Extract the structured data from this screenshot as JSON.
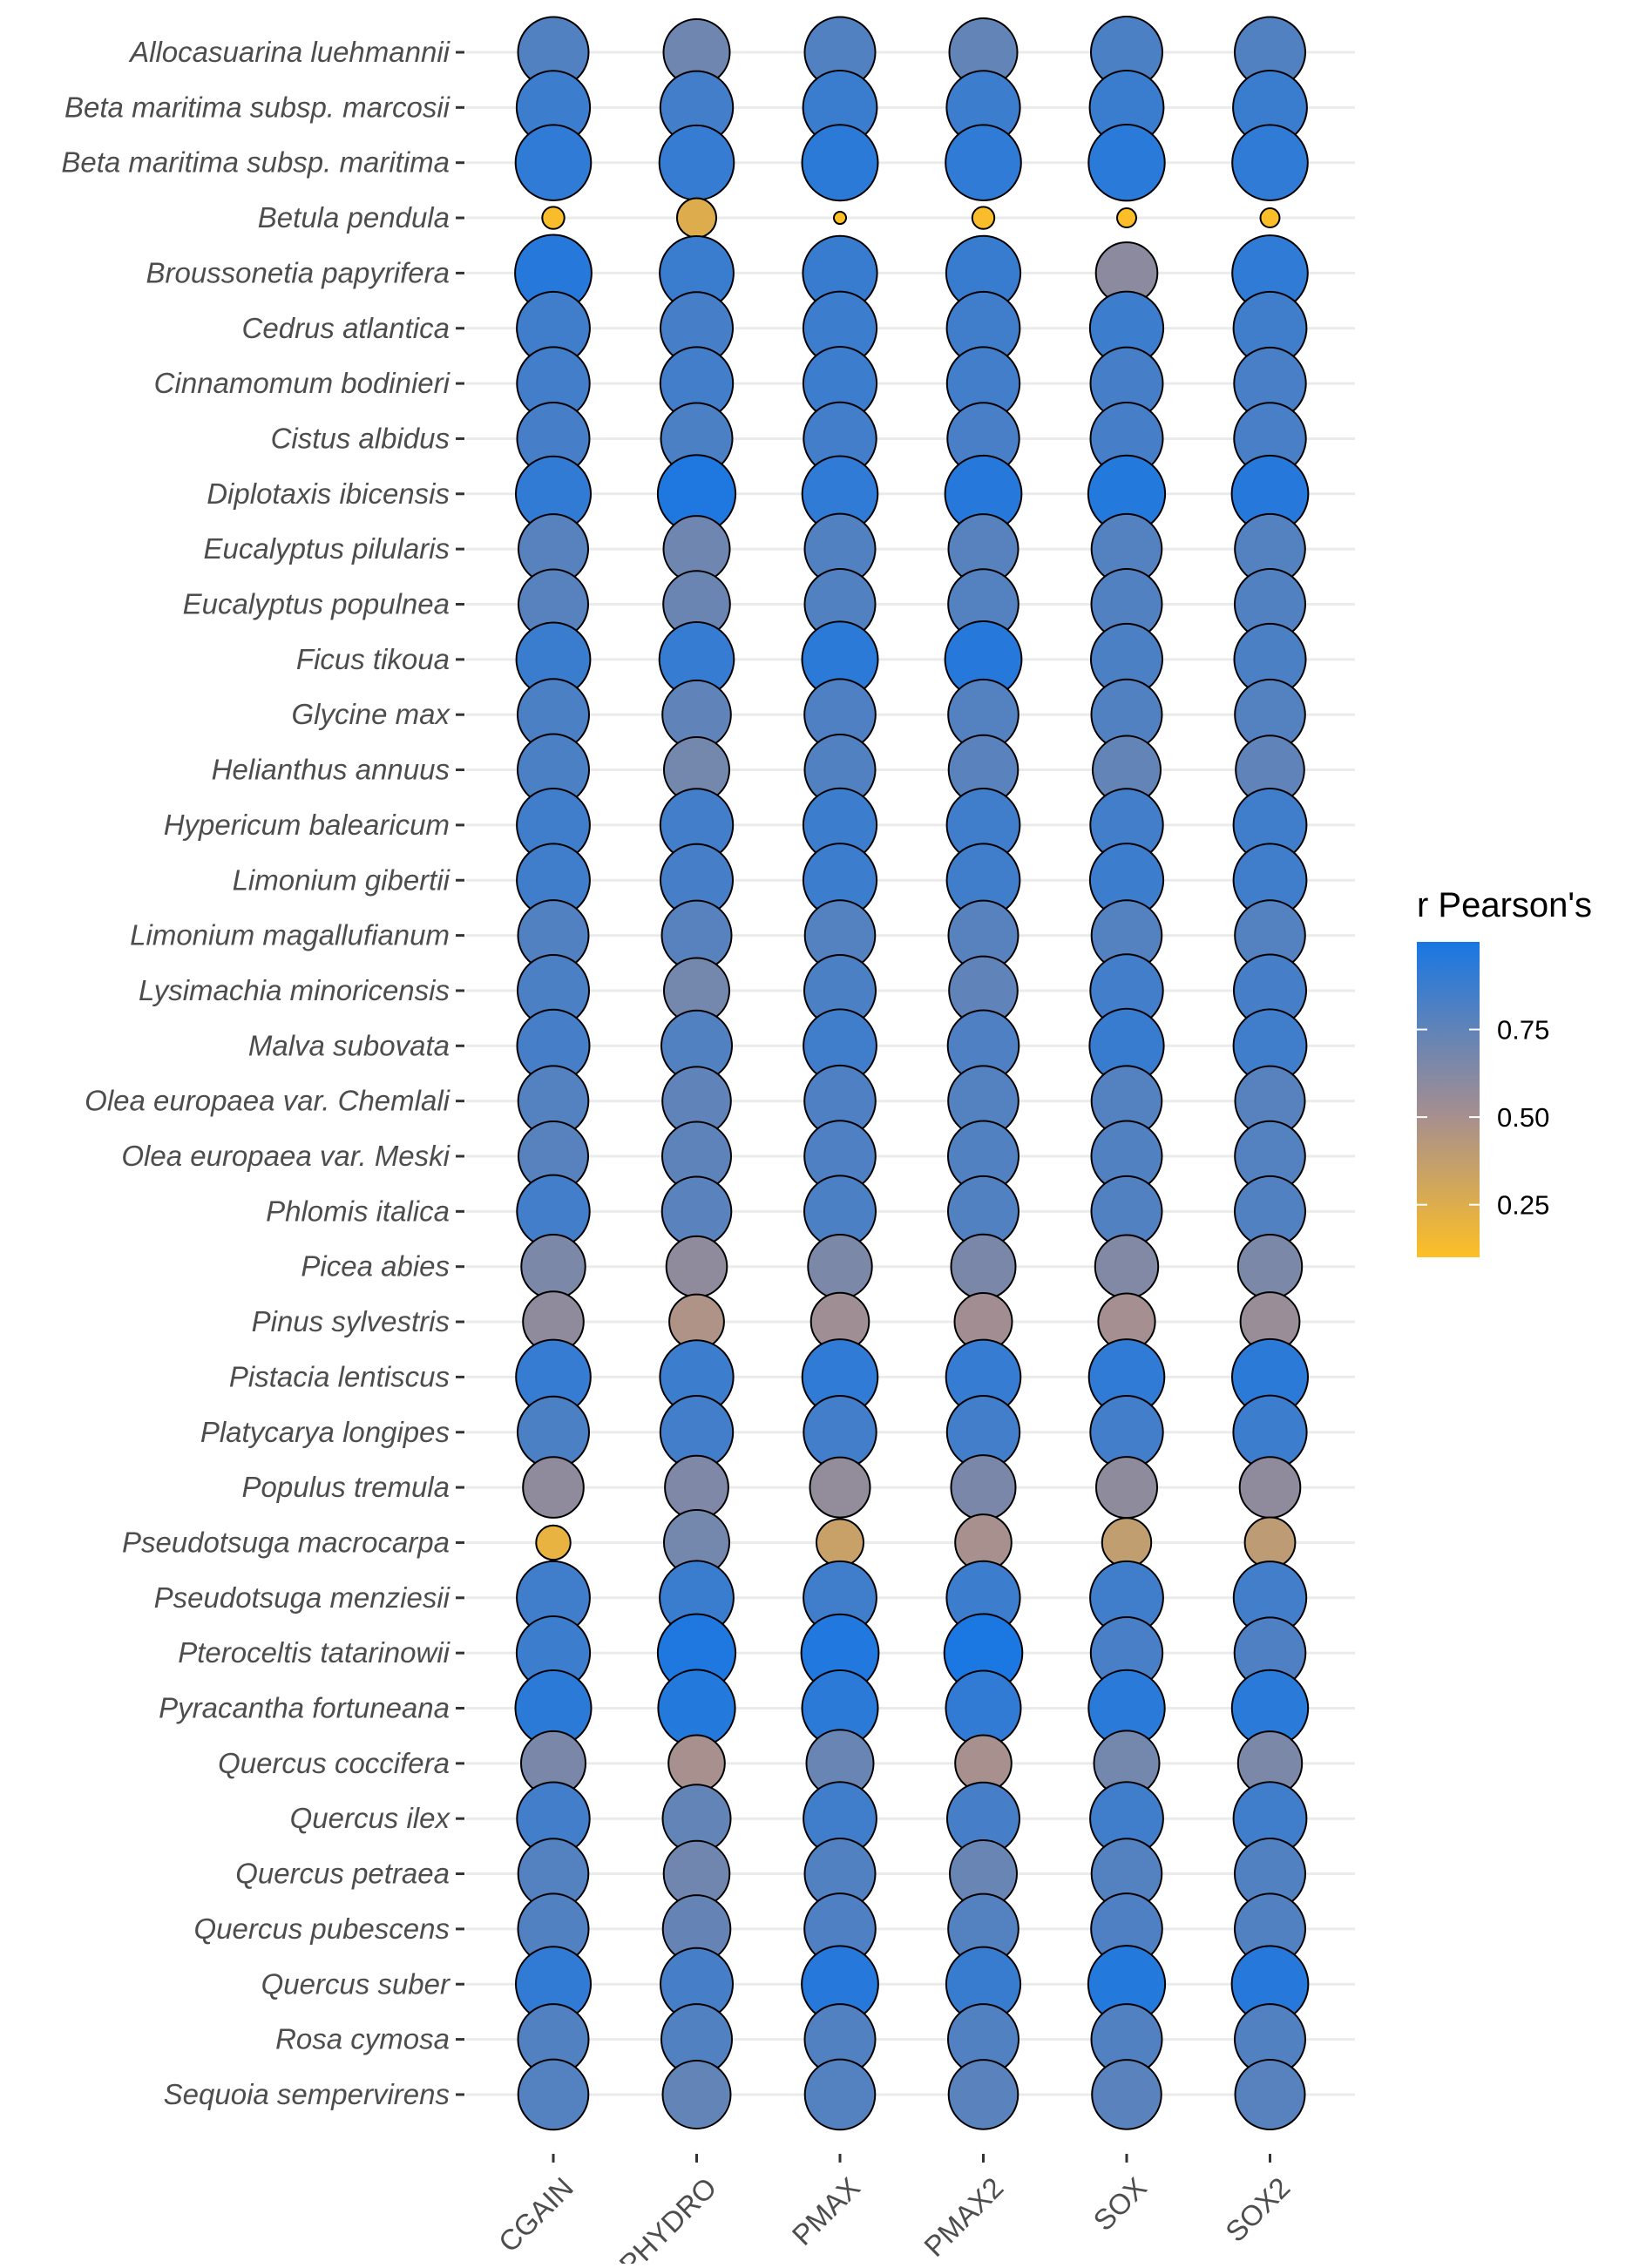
{
  "chart_data": {
    "type": "scatter",
    "title": "",
    "xlabel": "",
    "ylabel": "",
    "x_categories": [
      "CGAIN",
      "PHYDRO",
      "PMAX",
      "PMAX2",
      "SOX",
      "SOX2"
    ],
    "y_categories": [
      "Allocasuarina luehmannii",
      "Beta maritima subsp. marcosii",
      "Beta maritima subsp. maritima",
      "Betula pendula",
      "Broussonetia papyrifera",
      "Cedrus atlantica",
      "Cinnamomum bodinieri",
      "Cistus albidus",
      "Diplotaxis ibicensis",
      "Eucalyptus pilularis",
      "Eucalyptus populnea",
      "Ficus tikoua",
      "Glycine max",
      "Helianthus annuus",
      "Hypericum balearicum",
      "Limonium gibertii",
      "Limonium magallufianum",
      "Lysimachia minoricensis",
      "Malva subovata",
      "Olea europaea var. Chemlali",
      "Olea europaea var. Meski",
      "Phlomis italica",
      "Picea abies",
      "Pinus sylvestris",
      "Pistacia lentiscus",
      "Platycarya longipes",
      "Populus tremula",
      "Pseudotsuga macrocarpa",
      "Pseudotsuga menziesii",
      "Pteroceltis tatarinowii",
      "Pyracantha fortuneana",
      "Quercus coccifera",
      "Quercus ilex",
      "Quercus petraea",
      "Quercus pubescens",
      "Quercus suber",
      "Rosa cymosa",
      "Sequoia sempervirens"
    ],
    "values": [
      [
        0.8,
        0.7,
        0.8,
        0.74,
        0.82,
        0.8
      ],
      [
        0.87,
        0.85,
        0.88,
        0.87,
        0.88,
        0.88
      ],
      [
        0.92,
        0.9,
        0.93,
        0.92,
        0.94,
        0.92
      ],
      [
        0.12,
        0.25,
        0.06,
        0.12,
        0.11,
        0.11
      ],
      [
        0.95,
        0.88,
        0.89,
        0.89,
        0.6,
        0.92
      ],
      [
        0.86,
        0.84,
        0.87,
        0.86,
        0.87,
        0.86
      ],
      [
        0.85,
        0.85,
        0.87,
        0.85,
        0.84,
        0.83
      ],
      [
        0.84,
        0.82,
        0.85,
        0.83,
        0.84,
        0.83
      ],
      [
        0.91,
        0.98,
        0.92,
        0.95,
        0.96,
        0.95
      ],
      [
        0.78,
        0.7,
        0.8,
        0.78,
        0.79,
        0.79
      ],
      [
        0.78,
        0.71,
        0.8,
        0.79,
        0.8,
        0.8
      ],
      [
        0.88,
        0.9,
        0.93,
        0.95,
        0.82,
        0.82
      ],
      [
        0.82,
        0.75,
        0.81,
        0.79,
        0.8,
        0.79
      ],
      [
        0.82,
        0.68,
        0.8,
        0.77,
        0.74,
        0.75
      ],
      [
        0.86,
        0.85,
        0.87,
        0.86,
        0.85,
        0.86
      ],
      [
        0.86,
        0.84,
        0.87,
        0.86,
        0.87,
        0.86
      ],
      [
        0.8,
        0.78,
        0.79,
        0.78,
        0.79,
        0.79
      ],
      [
        0.82,
        0.68,
        0.82,
        0.75,
        0.85,
        0.84
      ],
      [
        0.84,
        0.8,
        0.86,
        0.81,
        0.89,
        0.86
      ],
      [
        0.79,
        0.75,
        0.81,
        0.79,
        0.79,
        0.78
      ],
      [
        0.78,
        0.76,
        0.81,
        0.8,
        0.8,
        0.79
      ],
      [
        0.85,
        0.77,
        0.82,
        0.8,
        0.8,
        0.8
      ],
      [
        0.65,
        0.58,
        0.65,
        0.66,
        0.63,
        0.65
      ],
      [
        0.58,
        0.47,
        0.53,
        0.52,
        0.51,
        0.55
      ],
      [
        0.9,
        0.87,
        0.92,
        0.9,
        0.92,
        0.93
      ],
      [
        0.82,
        0.85,
        0.85,
        0.85,
        0.85,
        0.87
      ],
      [
        0.58,
        0.64,
        0.57,
        0.66,
        0.59,
        0.58
      ],
      [
        0.2,
        0.68,
        0.35,
        0.5,
        0.38,
        0.4
      ],
      [
        0.86,
        0.88,
        0.86,
        0.87,
        0.86,
        0.85
      ],
      [
        0.87,
        0.98,
        0.97,
        0.99,
        0.83,
        0.81
      ],
      [
        0.93,
        0.96,
        0.93,
        0.91,
        0.94,
        0.94
      ],
      [
        0.66,
        0.5,
        0.72,
        0.5,
        0.68,
        0.65
      ],
      [
        0.85,
        0.74,
        0.86,
        0.84,
        0.86,
        0.86
      ],
      [
        0.79,
        0.69,
        0.8,
        0.72,
        0.79,
        0.8
      ],
      [
        0.8,
        0.73,
        0.81,
        0.79,
        0.81,
        0.8
      ],
      [
        0.91,
        0.84,
        0.95,
        0.89,
        0.96,
        0.95
      ],
      [
        0.8,
        0.8,
        0.8,
        0.8,
        0.8,
        0.8
      ],
      [
        0.79,
        0.74,
        0.79,
        0.77,
        0.77,
        0.78
      ]
    ],
    "size_and_color_variable": "r Pearson's",
    "legend": {
      "title": "r Pearson's",
      "position": "right",
      "ticks": [
        "0.25",
        "0.50",
        "0.75"
      ],
      "tick_values": [
        0.25,
        0.5,
        0.75
      ],
      "range": [
        0.1,
        1.0
      ],
      "low_color": "#fdbf26",
      "mid_color": "#a68f8f",
      "high_color": "#1877e3"
    },
    "grid": "horizontal"
  }
}
